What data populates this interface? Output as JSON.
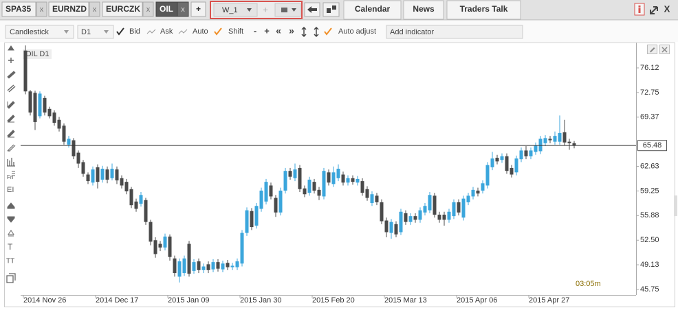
{
  "tabs": [
    {
      "label": "SPA35",
      "close": "x"
    },
    {
      "label": "EURNZD",
      "close": "x"
    },
    {
      "label": "EURCZK",
      "close": "x"
    },
    {
      "label": "OIL",
      "close": "x"
    }
  ],
  "new_tab": "+",
  "workspace": {
    "name": "W_1",
    "add": "+"
  },
  "nav_tabs": [
    "Calendar",
    "News",
    "Traders Talk"
  ],
  "window_close": "X",
  "toolbar": {
    "chart_type": "Candlestick",
    "period": "D1",
    "bid": "Bid",
    "ask": "Ask",
    "auto": "Auto",
    "shift": "Shift",
    "zoom_out": "-",
    "zoom_in": "+",
    "scroll_left": "«",
    "scroll_right": "»",
    "auto_adjust": "Auto adjust",
    "indicator_placeholder": "Add indicator"
  },
  "left_tools": [
    "Fn",
    "EI",
    "T",
    "TT"
  ],
  "chart_data": {
    "type": "candlestick",
    "label": "OIL D1",
    "timer": "03:05m",
    "up_color": "#3ba6dc",
    "down_color": "#4a4a4a",
    "current_price": 65.48,
    "ylim": [
      45,
      79.6
    ],
    "yticks": [
      76.12,
      72.75,
      69.37,
      62.63,
      59.25,
      55.88,
      {
        "value": 52.5,
        "label": "52.50"
      },
      49.13,
      45.75
    ],
    "categories": [
      "2014 Nov 26",
      null,
      null,
      null,
      null,
      null,
      null,
      null,
      null,
      null,
      null,
      null,
      null,
      null,
      null,
      "2014 Dec 17",
      null,
      null,
      null,
      null,
      null,
      null,
      null,
      null,
      null,
      null,
      null,
      null,
      null,
      null,
      "2015 Jan 09",
      null,
      null,
      null,
      null,
      null,
      null,
      null,
      null,
      null,
      null,
      null,
      null,
      null,
      null,
      "2015 Jan 30",
      null,
      null,
      null,
      null,
      null,
      null,
      null,
      null,
      null,
      null,
      null,
      null,
      null,
      null,
      "2015 Feb 20",
      null,
      null,
      null,
      null,
      null,
      null,
      null,
      null,
      null,
      null,
      null,
      null,
      null,
      null,
      "2015 Mar 13",
      null,
      null,
      null,
      null,
      null,
      null,
      null,
      null,
      null,
      null,
      null,
      null,
      null,
      null,
      "2015 Apr 06",
      null,
      null,
      null,
      null,
      null,
      null,
      null,
      null,
      null,
      null,
      null,
      null,
      null,
      null,
      "2015 Apr 27",
      null,
      null,
      null,
      null,
      null,
      null,
      null,
      null,
      null
    ],
    "open": [
      78.5,
      72.9,
      72.7,
      69.5,
      72.0,
      70.5,
      70.0,
      69.0,
      68.2,
      65.6,
      66.2,
      64.5,
      63.2,
      61.5,
      60.4,
      62.5,
      60.8,
      62.2,
      61.0,
      62.2,
      61.0,
      60.5,
      59.5,
      57.8,
      57.5,
      58.0,
      55.0,
      52.5,
      52.0,
      51.5,
      53.0,
      50.0,
      47.5,
      48.0,
      52.0,
      48.3,
      49.6,
      48.4,
      49.2,
      48.5,
      49.5,
      48.5,
      49.4,
      48.8,
      48.8,
      49.3,
      53.5,
      56.5,
      54.5,
      56.8,
      57.8,
      60.0,
      58.3,
      56.3,
      59.3,
      62.0,
      61.0,
      62.4,
      59.6,
      59.0,
      60.5,
      59.4,
      58.5,
      61.8,
      60.2,
      61.0,
      61.5,
      60.4,
      61.0,
      60.4,
      60.6,
      59.5,
      57.6,
      58.6,
      57.7,
      55.2,
      53.5,
      54.7,
      53.6,
      56.2,
      55.0,
      55.8,
      55.3,
      56.3,
      56.6,
      58.6,
      56.0,
      56.0,
      55.3,
      55.8,
      57.7,
      55.6,
      57.7,
      58.5,
      59.3,
      59.3,
      60.0,
      62.5,
      63.8,
      63.5,
      64.0,
      62.4,
      61.8,
      63.6,
      64.8,
      64.0,
      64.6,
      64.7,
      65.8,
      66.4,
      66.0,
      66.0,
      67.3,
      66.0,
      65.8
    ],
    "high": [
      79.2,
      73.1,
      73.0,
      72.9,
      72.3,
      70.8,
      70.3,
      69.4,
      68.5,
      66.8,
      66.5,
      64.8,
      63.5,
      61.8,
      62.6,
      62.9,
      62.7,
      62.6,
      63.0,
      62.6,
      61.4,
      60.9,
      59.8,
      58.2,
      59.1,
      58.3,
      55.3,
      52.9,
      52.4,
      53.4,
      53.3,
      50.4,
      50.0,
      50.4,
      52.4,
      49.9,
      50.0,
      49.3,
      49.6,
      49.9,
      49.9,
      49.7,
      49.8,
      49.4,
      50.0,
      53.9,
      57.0,
      56.9,
      57.6,
      59.7,
      60.9,
      60.4,
      58.7,
      59.7,
      62.4,
      62.4,
      63.0,
      62.8,
      60.0,
      61.2,
      60.9,
      59.8,
      62.4,
      62.2,
      62.6,
      62.9,
      61.9,
      61.4,
      61.4,
      61.3,
      61.0,
      59.9,
      59.2,
      59.0,
      58.1,
      55.6,
      55.4,
      55.1,
      56.8,
      56.6,
      56.2,
      56.2,
      57.0,
      57.6,
      59.1,
      59.0,
      56.4,
      56.4,
      56.8,
      58.1,
      58.1,
      58.6,
      59.0,
      59.8,
      59.7,
      60.7,
      63.2,
      64.6,
      64.2,
      64.4,
      64.4,
      62.8,
      64.1,
      65.2,
      65.4,
      65.2,
      65.9,
      66.8,
      66.9,
      66.8,
      67.4,
      69.6,
      69.0,
      66.4,
      66.1
    ],
    "low": [
      72.5,
      69.6,
      67.6,
      69.2,
      69.6,
      69.2,
      68.2,
      67.4,
      65.6,
      65.2,
      63.6,
      62.4,
      61.2,
      60.2,
      60.0,
      59.6,
      60.4,
      60.3,
      60.7,
      60.2,
      59.6,
      58.8,
      56.9,
      56.4,
      57.1,
      54.6,
      51.8,
      50.1,
      51.0,
      51.1,
      49.7,
      47.5,
      46.7,
      47.6,
      47.5,
      47.9,
      48.0,
      48.0,
      48.0,
      48.1,
      48.2,
      48.1,
      48.4,
      48.4,
      48.4,
      48.9,
      53.1,
      53.9,
      54.1,
      56.4,
      57.4,
      58.1,
      55.7,
      55.9,
      58.9,
      60.8,
      60.6,
      59.1,
      58.4,
      58.6,
      58.9,
      58.0,
      58.1,
      60.0,
      59.8,
      60.6,
      60.0,
      60.0,
      60.1,
      60.0,
      58.6,
      57.9,
      57.2,
      57.3,
      54.7,
      52.9,
      52.7,
      52.9,
      53.2,
      54.6,
      54.6,
      54.9,
      54.9,
      55.9,
      56.2,
      55.6,
      54.9,
      54.5,
      54.9,
      55.4,
      55.9,
      55.2,
      57.3,
      58.1,
      58.5,
      58.9,
      59.6,
      62.1,
      62.9,
      63.1,
      61.6,
      61.1,
      61.4,
      63.2,
      63.6,
      63.6,
      64.2,
      64.3,
      65.4,
      65.8,
      65.6,
      65.6,
      65.5,
      64.9,
      65.1
    ],
    "close": [
      72.9,
      70.0,
      68.7,
      72.6,
      70.0,
      69.5,
      68.6,
      67.8,
      66.0,
      66.4,
      64.0,
      63.0,
      61.6,
      60.6,
      62.2,
      60.5,
      62.3,
      60.8,
      62.3,
      60.7,
      60.0,
      59.2,
      57.3,
      56.8,
      58.7,
      55.0,
      52.3,
      50.6,
      51.5,
      53.0,
      50.2,
      48.0,
      49.6,
      50.0,
      47.9,
      49.5,
      48.4,
      48.9,
      48.4,
      49.5,
      48.6,
      49.3,
      48.8,
      49.0,
      49.6,
      53.5,
      56.6,
      54.3,
      57.2,
      59.3,
      60.5,
      58.5,
      56.3,
      59.3,
      62.0,
      61.2,
      62.2,
      59.5,
      58.8,
      60.8,
      59.3,
      58.6,
      62.0,
      60.4,
      61.8,
      62.3,
      60.4,
      61.0,
      60.5,
      60.9,
      59.0,
      58.3,
      58.8,
      57.7,
      55.1,
      53.6,
      55.0,
      53.3,
      56.4,
      55.0,
      55.8,
      55.3,
      56.6,
      57.2,
      58.7,
      56.0,
      55.3,
      55.3,
      56.4,
      57.7,
      56.3,
      58.2,
      58.6,
      59.4,
      58.9,
      60.3,
      62.8,
      63.7,
      63.3,
      64.0,
      62.0,
      61.5,
      63.7,
      64.8,
      64.0,
      64.8,
      65.5,
      66.4,
      66.5,
      66.2,
      66.8,
      67.2,
      65.9,
      65.8,
      65.48
    ]
  }
}
